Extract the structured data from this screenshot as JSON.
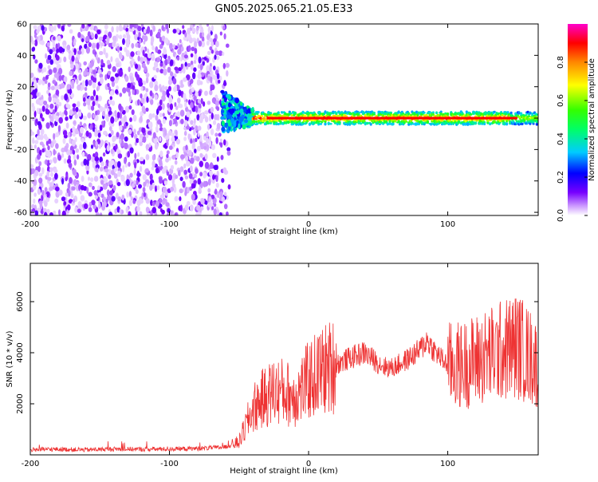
{
  "title": "GN05.2025.065.21.05.E33",
  "colors": {
    "snr_line": "#ee3333",
    "axis": "#000000"
  },
  "chart_data": [
    {
      "type": "heatmap",
      "title": "GN05.2025.065.21.05.E33",
      "xlabel": "Height of straight line (km)",
      "ylabel": "Frequency (Hz)",
      "xlim": [
        -200,
        165
      ],
      "ylim": [
        -62,
        60
      ],
      "x_ticks": [
        "-200",
        "-100",
        "0",
        "100"
      ],
      "y_ticks": [
        "60",
        "40",
        "20",
        "0",
        "-20",
        "-40",
        "-60"
      ],
      "colorbar": {
        "label": "Normalized spectral amplitude",
        "range": [
          0,
          1
        ],
        "ticks": [
          "0.0",
          "0.2",
          "0.4",
          "0.6",
          "0.8"
        ],
        "colors": [
          "#ffffff",
          "#cc99ff",
          "#7700ff",
          "#0000ff",
          "#00ffff",
          "#00ff00",
          "#ffff00",
          "#ff8800",
          "#ff0000",
          "#ff00cc"
        ]
      },
      "regions": [
        {
          "description_x_range": [
            -200,
            -57
          ],
          "frequency_range": [
            -62,
            60
          ],
          "amplitude_range": [
            0.02,
            0.15
          ]
        },
        {
          "description_x_range": [
            -62,
            -40
          ],
          "frequency_range": [
            -12,
            14
          ],
          "amplitude_range": [
            0.2,
            0.45
          ]
        },
        {
          "description_x_range": [
            -40,
            165
          ],
          "frequency_range": [
            -4,
            4
          ],
          "amplitude_range": [
            0.3,
            0.95
          ]
        }
      ]
    },
    {
      "type": "line",
      "xlabel": "Height of straight line (km)",
      "ylabel": "SNR (10 * v/v)",
      "xlim": [
        -200,
        165
      ],
      "ylim": [
        0,
        7500
      ],
      "x_ticks": [
        "-200",
        "-100",
        "0",
        "100"
      ],
      "y_ticks": [
        "2000",
        "4000",
        "6000"
      ],
      "series": [
        {
          "x": [
            -200,
            -180,
            -160,
            -140,
            -120,
            -100,
            -80,
            -60,
            -50,
            -40,
            -35,
            -30,
            -25,
            -20,
            -15,
            -10,
            -5,
            0,
            10,
            20,
            30,
            40,
            50,
            55,
            60,
            70,
            80,
            85,
            90,
            95,
            100,
            110,
            120,
            130,
            140,
            150,
            160,
            165
          ],
          "y": [
            200,
            220,
            200,
            230,
            220,
            230,
            250,
            300,
            500,
            1800,
            2100,
            2300,
            2500,
            2500,
            2400,
            2300,
            2600,
            2900,
            3300,
            3550,
            3800,
            4000,
            3600,
            3450,
            3400,
            3700,
            4100,
            4500,
            4100,
            3800,
            3500,
            3500,
            3700,
            3900,
            4100,
            4300,
            3800,
            3500
          ]
        }
      ]
    }
  ]
}
